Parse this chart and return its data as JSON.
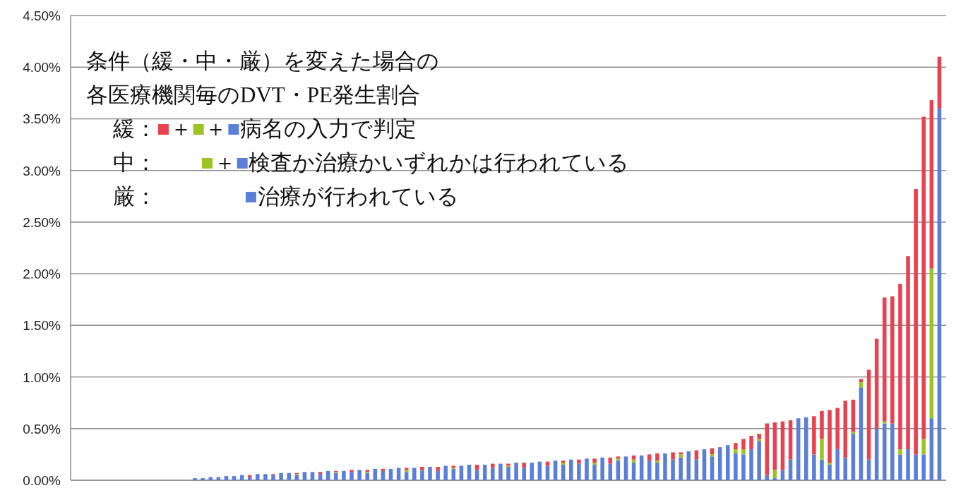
{
  "chart_data": {
    "type": "bar",
    "stacked": true,
    "title": "条件（緩・中・厳）を変えた場合の",
    "subtitle": "各医療機関毎のDVT・PE発生割合",
    "annotations": [
      "緩：■＋■＋■病名の入力で判定",
      "中：　　■＋■検査か治療かいずれかは行われている",
      "厳：　　　　■治療が行われている"
    ],
    "categories": [
      null,
      null,
      null,
      null,
      null,
      null,
      null,
      null,
      null,
      null,
      null,
      null,
      null,
      null,
      null,
      null,
      null,
      null,
      null,
      null,
      null,
      null,
      null,
      null,
      null,
      null,
      null,
      null,
      null,
      null,
      null,
      null,
      null,
      null,
      null,
      null,
      null,
      null,
      null,
      null,
      null,
      null,
      null,
      null,
      null,
      null,
      null,
      null,
      null,
      null,
      null,
      null,
      null,
      null,
      null,
      null,
      null,
      null,
      null,
      null,
      null,
      null,
      null,
      null,
      null,
      null,
      null,
      null,
      null,
      null,
      null,
      null,
      null,
      null,
      null,
      null,
      null,
      null,
      null,
      null,
      null,
      null,
      null,
      null,
      null,
      null,
      null,
      null,
      null,
      null,
      null,
      null,
      null,
      null,
      null,
      null,
      null,
      null,
      null,
      null,
      null,
      null,
      null,
      null,
      null,
      null,
      null,
      null,
      null,
      null,
      null
    ],
    "series": [
      {
        "color": "#5b7fd8",
        "values": [
          0,
          0,
          0,
          0,
          0,
          0,
          0,
          0,
          0,
          0,
          0,
          0,
          0,
          0,
          0,
          0.02,
          0.02,
          0.03,
          0.03,
          0.04,
          0.04,
          0.05,
          0.03,
          0.06,
          0.06,
          0.05,
          0.07,
          0.07,
          0.05,
          0.08,
          0.08,
          0.06,
          0.09,
          0.07,
          0.09,
          0.08,
          0.1,
          0.07,
          0.11,
          0.09,
          0.11,
          0.12,
          0.08,
          0.12,
          0.1,
          0.13,
          0.09,
          0.14,
          0.11,
          0.14,
          0.15,
          0.1,
          0.15,
          0.12,
          0.16,
          0.13,
          0.17,
          0.12,
          0.17,
          0.18,
          0.14,
          0.19,
          0.15,
          0.2,
          0.16,
          0.21,
          0.15,
          0.22,
          0.16,
          0.19,
          0.23,
          0.17,
          0.24,
          0.19,
          0.17,
          0.26,
          0.2,
          0.22,
          0.28,
          0.2,
          0.3,
          0.23,
          0.32,
          0.34,
          0.26,
          0.25,
          0.3,
          0.38,
          0.05,
          0.02,
          0.1,
          0.2,
          0.6,
          0.61,
          0.25,
          0.2,
          0.15,
          0.3,
          0.22,
          0.45,
          0.9,
          0.2,
          0.5,
          0.55,
          0.55,
          0.25,
          0.3,
          0.25,
          0.25,
          0.6,
          3.6
        ]
      },
      {
        "color": "#9cc322",
        "values": [
          0,
          0,
          0,
          0,
          0,
          0,
          0,
          0,
          0,
          0,
          0,
          0,
          0,
          0,
          0,
          0,
          0,
          0,
          0,
          0,
          0,
          0,
          0,
          0,
          0,
          0,
          0,
          0,
          0.01,
          0,
          0,
          0,
          0,
          0.01,
          0,
          0,
          0,
          0.01,
          0,
          0,
          0,
          0,
          0.02,
          0,
          0,
          0,
          0,
          0,
          0.01,
          0,
          0,
          0,
          0,
          0,
          0,
          0.01,
          0,
          0,
          0,
          0,
          0,
          0,
          0.02,
          0,
          0,
          0,
          0.02,
          0,
          0,
          0.02,
          0,
          0.03,
          0,
          0,
          0.02,
          0,
          0,
          0.03,
          0,
          0,
          0,
          0.02,
          0,
          0,
          0.04,
          0.05,
          0,
          0.02,
          0,
          0.08,
          0,
          0,
          0,
          0,
          0,
          0.2,
          0.02,
          0,
          0,
          0.02,
          0.05,
          0,
          0,
          0.02,
          0,
          0.05,
          0,
          0,
          0.15,
          1.45,
          0
        ]
      },
      {
        "color": "#e8414f",
        "values": [
          0,
          0,
          0,
          0,
          0,
          0,
          0,
          0,
          0,
          0,
          0,
          0,
          0,
          0,
          0,
          0,
          0,
          0,
          0,
          0,
          0,
          0,
          0.02,
          0,
          0,
          0.01,
          0,
          0,
          0.01,
          0,
          0,
          0.02,
          0,
          0.01,
          0,
          0.02,
          0,
          0.02,
          0,
          0.02,
          0,
          0,
          0.02,
          0,
          0.03,
          0,
          0.04,
          0,
          0.02,
          0,
          0,
          0.05,
          0,
          0.04,
          0,
          0.02,
          0,
          0.05,
          0,
          0,
          0.04,
          0,
          0.02,
          0,
          0.04,
          0,
          0.04,
          0,
          0.06,
          0.02,
          0,
          0.04,
          0,
          0.06,
          0.07,
          0,
          0.07,
          0.02,
          0,
          0.09,
          0,
          0.06,
          0,
          0,
          0.06,
          0.1,
          0.13,
          0.05,
          0.5,
          0.46,
          0.47,
          0.38,
          0,
          0,
          0.37,
          0.27,
          0.51,
          0.4,
          0.55,
          0.31,
          0.03,
          0.87,
          0.87,
          1.2,
          1.23,
          1.6,
          1.87,
          2.57,
          3.12,
          1.63,
          0.5
        ]
      }
    ],
    "ylim": [
      0,
      4.5
    ],
    "yticks": [
      {
        "value": 0,
        "label": "0.00%"
      },
      {
        "value": 0.5,
        "label": "0.50%"
      },
      {
        "value": 1,
        "label": "1.00%"
      },
      {
        "value": 1.5,
        "label": "1.50%"
      },
      {
        "value": 2,
        "label": "2.00%"
      },
      {
        "value": 2.5,
        "label": "2.50%"
      },
      {
        "value": 3,
        "label": "3.00%"
      },
      {
        "value": 3.5,
        "label": "3.50%"
      },
      {
        "value": 4,
        "label": "4.00%"
      },
      {
        "value": 4.5,
        "label": "4.50%"
      }
    ],
    "grid": "y"
  }
}
